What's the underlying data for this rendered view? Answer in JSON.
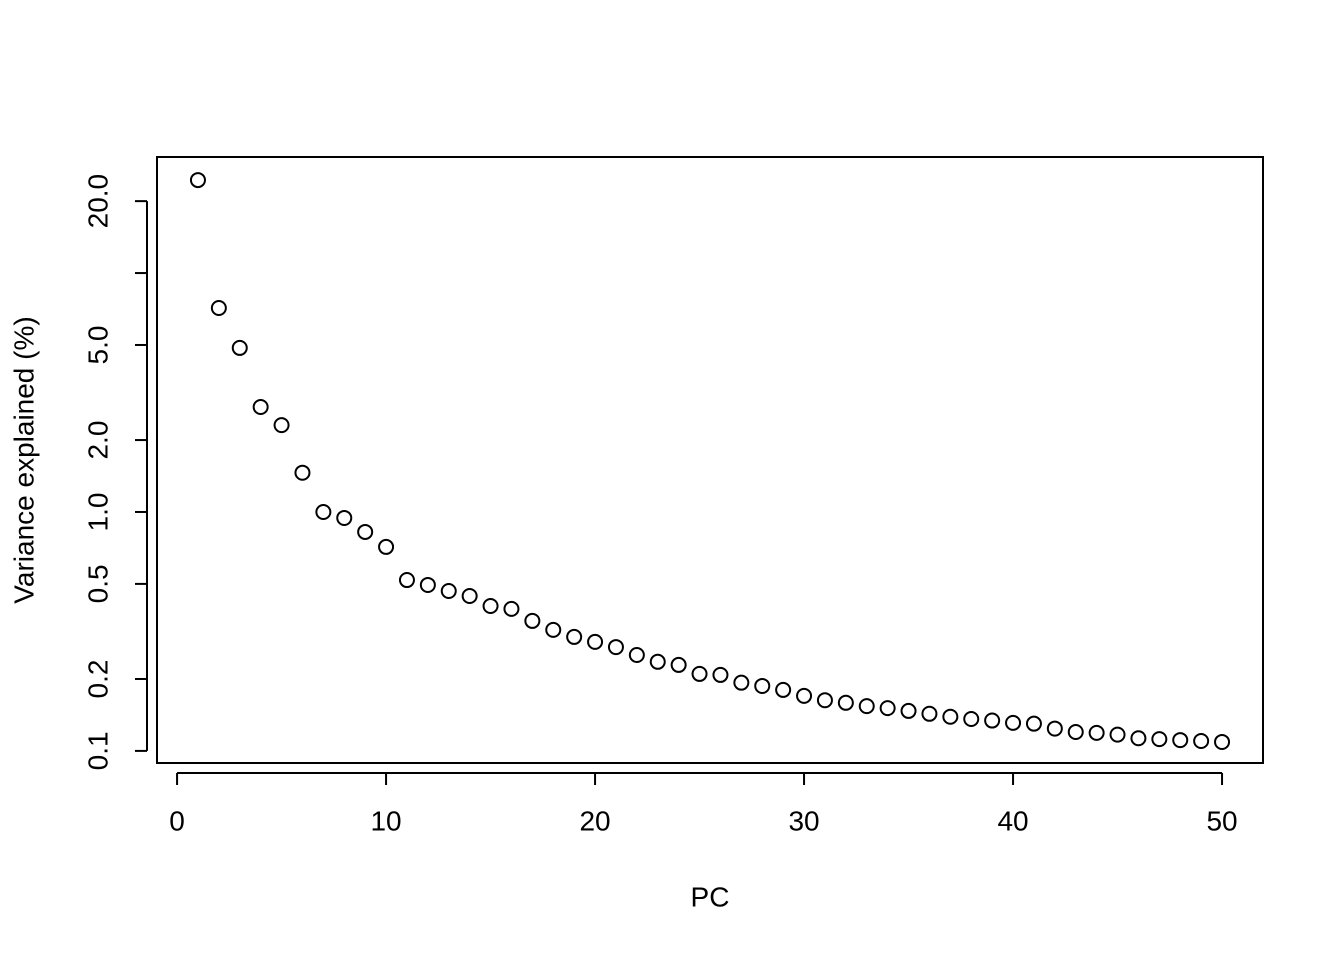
{
  "chart_data": {
    "type": "scatter",
    "x_label": "PC",
    "y_label": "Variance explained (%)",
    "x": [
      1,
      2,
      3,
      4,
      5,
      6,
      7,
      8,
      9,
      10,
      11,
      12,
      13,
      14,
      15,
      16,
      17,
      18,
      19,
      20,
      21,
      22,
      23,
      24,
      25,
      26,
      27,
      28,
      29,
      30,
      31,
      32,
      33,
      34,
      35,
      36,
      37,
      38,
      39,
      40,
      41,
      42,
      43,
      44,
      45,
      46,
      47,
      48,
      49,
      50
    ],
    "values": [
      24.5,
      7.14,
      4.86,
      2.75,
      2.31,
      1.46,
      1.0,
      0.944,
      0.825,
      0.714,
      0.519,
      0.495,
      0.467,
      0.445,
      0.404,
      0.393,
      0.35,
      0.321,
      0.3,
      0.286,
      0.272,
      0.252,
      0.236,
      0.229,
      0.21,
      0.208,
      0.193,
      0.187,
      0.18,
      0.17,
      0.163,
      0.159,
      0.154,
      0.151,
      0.147,
      0.143,
      0.139,
      0.136,
      0.134,
      0.131,
      0.13,
      0.124,
      0.12,
      0.119,
      0.117,
      0.113,
      0.112,
      0.111,
      0.11,
      0.109
    ],
    "color": "#000000",
    "log_y": true,
    "xlim": [
      -0.96,
      51.96
    ],
    "xticks": [
      0,
      10,
      20,
      30,
      40,
      50
    ],
    "ylim": [
      0.089,
      30.6
    ],
    "yticks": [
      {
        "value": 0.1,
        "label": "0.1"
      },
      {
        "value": 0.2,
        "label": "0.2"
      },
      {
        "value": 0.5,
        "label": "0.5"
      },
      {
        "value": 1,
        "label": "1.0"
      },
      {
        "value": 2,
        "label": "2.0"
      },
      {
        "value": 5,
        "label": "5.0"
      },
      {
        "value": 10,
        "label": null
      },
      {
        "value": 20,
        "label": "20.0"
      }
    ],
    "grid": false
  }
}
